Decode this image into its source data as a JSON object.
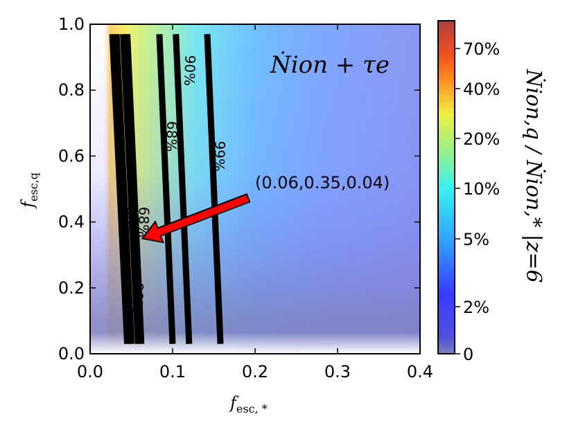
{
  "chart_data": {
    "type": "heatmap",
    "title": "Ṅion + τe",
    "xlabel": "fesc, *",
    "xlabel_main": "f",
    "xlabel_sub": "esc, *",
    "ylabel": "fesc,q",
    "ylabel_main": "f",
    "ylabel_sub": "esc,q",
    "xlim": [
      0.0,
      0.4
    ],
    "ylim": [
      0.0,
      1.0
    ],
    "xticks": [
      0.0,
      0.1,
      0.2,
      0.3,
      0.4
    ],
    "xtick_labels": [
      "0.0",
      "0.1",
      "0.2",
      "0.3",
      "0.4"
    ],
    "yticks": [
      0.0,
      0.2,
      0.4,
      0.6,
      0.8,
      1.0
    ],
    "ytick_labels": [
      "0.0",
      "0.2",
      "0.4",
      "0.6",
      "0.8",
      "1.0"
    ],
    "grid": false,
    "colorbar": {
      "label": "Ṅion,q / Ṅion,* |z=6",
      "ticks": [
        "0",
        "2%",
        "5%",
        "10%",
        "20%",
        "40%",
        "70%"
      ],
      "scale": "nonlinear",
      "colormap": "jet"
    },
    "contours": [
      {
        "label": "99%",
        "points": [
          [
            0.027,
            0.97
          ],
          [
            0.045,
            0.03
          ]
        ]
      },
      {
        "label": "99%",
        "points": [
          [
            0.032,
            0.97
          ],
          [
            0.05,
            0.03
          ]
        ]
      },
      {
        "label": "68%",
        "points": [
          [
            0.04,
            0.97
          ],
          [
            0.058,
            0.03
          ]
        ]
      },
      {
        "label": "90%",
        "points": [
          [
            0.045,
            0.97
          ],
          [
            0.062,
            0.03
          ]
        ]
      },
      {
        "label": "68%",
        "points": [
          [
            0.084,
            0.97
          ],
          [
            0.1,
            0.03
          ]
        ]
      },
      {
        "label": "90%",
        "points": [
          [
            0.104,
            0.97
          ],
          [
            0.12,
            0.03
          ]
        ]
      },
      {
        "label": "99%",
        "points": [
          [
            0.142,
            0.97
          ],
          [
            0.158,
            0.03
          ]
        ]
      }
    ],
    "inline_labels": [
      {
        "text": "99%",
        "x": 0.04,
        "y": 0.4
      },
      {
        "text": "68%",
        "x": 0.059,
        "y": 0.4
      },
      {
        "text": "90%",
        "x": 0.052,
        "y": 0.17
      },
      {
        "text": "68%",
        "x": 0.093,
        "y": 0.66
      },
      {
        "text": "90%",
        "x": 0.115,
        "y": 0.86
      },
      {
        "text": "99%",
        "x": 0.151,
        "y": 0.6
      }
    ],
    "annotation": {
      "text": "(0.06,0.35,0.04)",
      "point": [
        0.06,
        0.35
      ],
      "text_pos": [
        0.2,
        0.52
      ]
    },
    "colors": {
      "arrow": "#ff0000",
      "contour": "#000000",
      "background_low": "#7f7fc8",
      "background_mid": "#8888f0"
    }
  }
}
